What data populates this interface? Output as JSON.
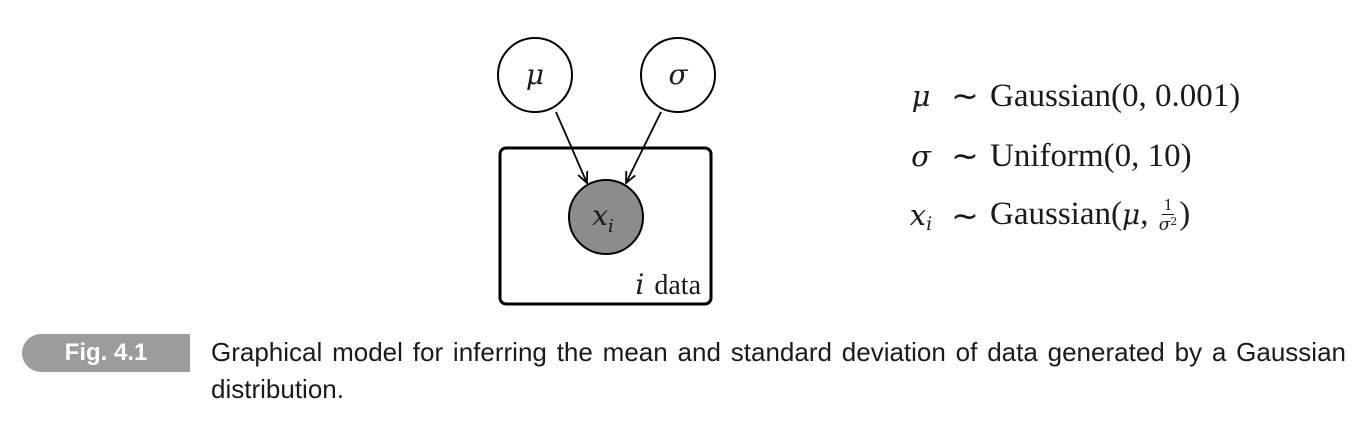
{
  "diagram": {
    "nodes": {
      "mu": {
        "label": "μ",
        "observed": false
      },
      "sigma": {
        "label": "σ",
        "observed": false
      },
      "x": {
        "label": "x",
        "subscript": "i",
        "observed": true
      }
    },
    "edges": [
      {
        "from": "mu",
        "to": "x"
      },
      {
        "from": "sigma",
        "to": "x"
      }
    ],
    "plate": {
      "index": "i",
      "label": "data"
    },
    "colors": {
      "observed_fill": "#8c8c8c",
      "node_stroke": "#000000",
      "latent_fill": "#ffffff"
    }
  },
  "equations": [
    {
      "var": "μ",
      "var_sub": "",
      "tilde": "∼",
      "dist": "Gaussian",
      "args": "(0, 0.001)"
    },
    {
      "var": "σ",
      "var_sub": "",
      "tilde": "∼",
      "dist": "Uniform",
      "args": "(0, 10)"
    },
    {
      "var": "x",
      "var_sub": "i",
      "tilde": "∼",
      "dist": "Gaussian",
      "args_open": "(",
      "arg1": "μ",
      "arg_sep": ", ",
      "frac_num": "1",
      "frac_den": "σ",
      "frac_den_sup": "2",
      "args_close": ")"
    }
  ],
  "caption": {
    "tag": "Fig. 4.1",
    "text": "Graphical model for inferring the mean and standard deviation of data generated by a Gaussian distribution."
  }
}
